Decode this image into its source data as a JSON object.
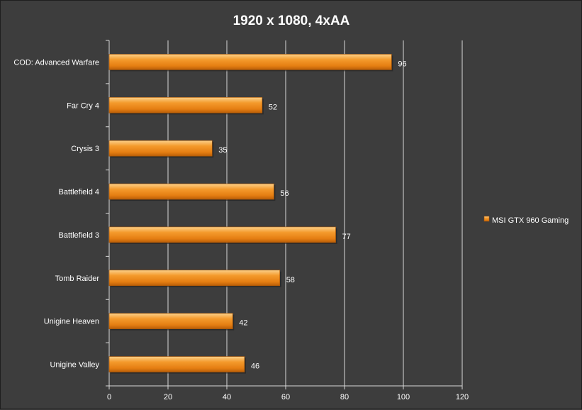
{
  "chart_data": {
    "type": "bar",
    "orientation": "horizontal",
    "title": "1920 x 1080, 4xAA",
    "categories": [
      "COD: Advanced Warfare",
      "Far Cry 4",
      "Crysis 3",
      "Battlefield 4",
      "Battlefield 3",
      "Tomb Raider",
      "Unigine Heaven",
      "Unigine Valley"
    ],
    "series": [
      {
        "name": "MSI GTX 960 Gaming",
        "values": [
          96,
          52,
          35,
          56,
          77,
          58,
          42,
          46
        ],
        "color": "#f08a1a"
      }
    ],
    "xlim": [
      0,
      120
    ],
    "xticks": [
      0,
      20,
      40,
      60,
      80,
      100,
      120
    ],
    "grid": true,
    "legend": "right",
    "data_labels": true
  }
}
